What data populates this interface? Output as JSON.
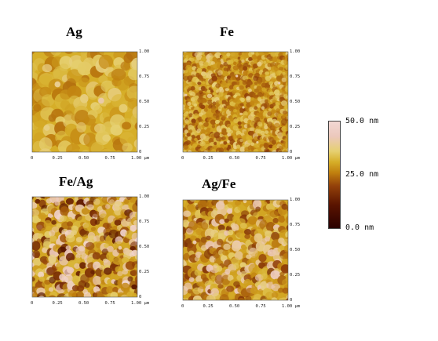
{
  "panels": [
    {
      "id": "ag",
      "title": "Ag",
      "x_ticks": [
        "0",
        "0.25",
        "0.50",
        "0.75",
        "1.00 µm"
      ],
      "y_ticks": [
        "1.00",
        "0.75",
        "0.50",
        "0.25",
        "0"
      ],
      "seed": 11,
      "grain_size": "large",
      "mean_height_fraction": 0.62,
      "contrast": 0.14
    },
    {
      "id": "fe",
      "title": "Fe",
      "x_ticks": [
        "0",
        "0.25",
        "0.50",
        "0.75",
        "1.00 µm"
      ],
      "y_ticks": [
        "1.00",
        "0.75",
        "0.50",
        "0.25",
        "0"
      ],
      "seed": 23,
      "grain_size": "small",
      "mean_height_fraction": 0.58,
      "contrast": 0.2
    },
    {
      "id": "fe-ag",
      "title": "Fe/Ag",
      "x_ticks": [
        "0",
        "0.25",
        "0.50",
        "0.75",
        "1.00 µm"
      ],
      "y_ticks": [
        "1.00",
        "0.75",
        "0.50",
        "0.25",
        "0"
      ],
      "seed": 37,
      "grain_size": "medium",
      "mean_height_fraction": 0.6,
      "contrast": 0.42
    },
    {
      "id": "ag-fe",
      "title": "Ag/Fe",
      "x_ticks": [
        "0",
        "0.25",
        "0.50",
        "0.75",
        "1.00 µm"
      ],
      "y_ticks": [
        "1.00",
        "0.75",
        "0.50",
        "0.25",
        "0"
      ],
      "seed": 51,
      "grain_size": "medium",
      "mean_height_fraction": 0.6,
      "contrast": 0.3
    }
  ],
  "colorbar": {
    "labels": {
      "top": "50.0 nm",
      "mid": "25.0 nm",
      "bottom": "0.0 nm"
    },
    "stops": [
      {
        "pos": 0.0,
        "color": "#2a0000"
      },
      {
        "pos": 0.22,
        "color": "#5a1400"
      },
      {
        "pos": 0.4,
        "color": "#94420a"
      },
      {
        "pos": 0.52,
        "color": "#c0800f"
      },
      {
        "pos": 0.62,
        "color": "#d6ae28"
      },
      {
        "pos": 0.72,
        "color": "#e6d070"
      },
      {
        "pos": 0.86,
        "color": "#ecc8bc"
      },
      {
        "pos": 1.0,
        "color": "#f2d8d4"
      }
    ]
  }
}
